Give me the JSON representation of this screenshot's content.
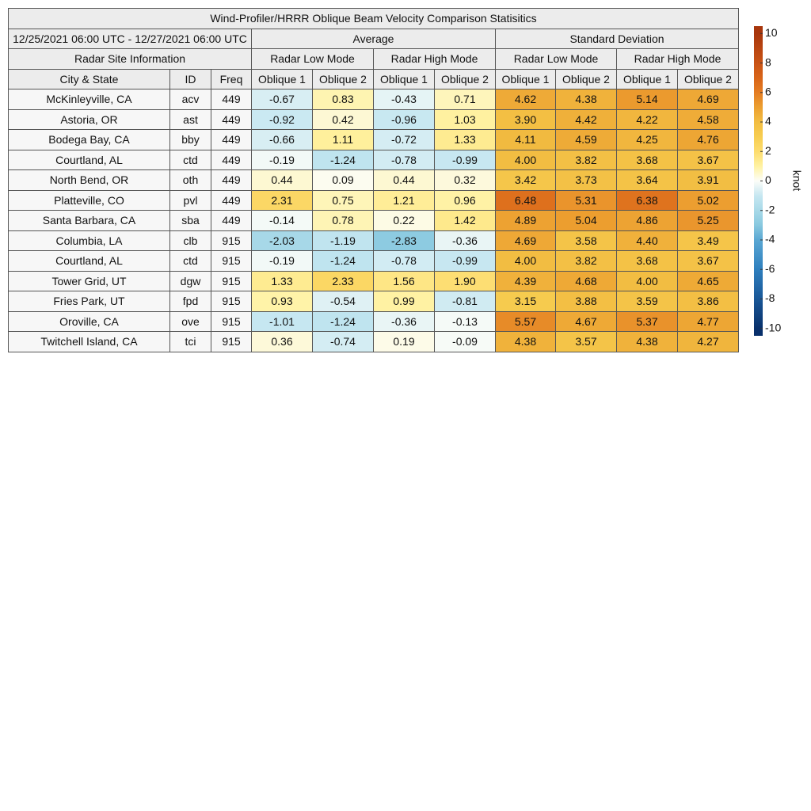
{
  "title": "Wind-Profiler/HRRR Oblique Beam Velocity Comparison Statisitics",
  "date_range": "12/25/2021 06:00 UTC - 12/27/2021 06:00 UTC",
  "groups": [
    "Average",
    "Standard Deviation"
  ],
  "site_header": "Radar Site Information",
  "modes": [
    "Radar Low Mode",
    "Radar High Mode",
    "Radar Low Mode",
    "Radar High Mode"
  ],
  "columns": [
    "City & State",
    "ID",
    "Freq",
    "Oblique 1",
    "Oblique 2",
    "Oblique 1",
    "Oblique 2",
    "Oblique 1",
    "Oblique 2",
    "Oblique 1",
    "Oblique 2"
  ],
  "rows": [
    [
      "McKinleyville, CA",
      "acv",
      "449",
      "-0.67",
      "0.83",
      "-0.43",
      "0.71",
      "4.62",
      "4.38",
      "5.14",
      "4.69"
    ],
    [
      "Astoria, OR",
      "ast",
      "449",
      "-0.92",
      "0.42",
      "-0.96",
      "1.03",
      "3.90",
      "4.42",
      "4.22",
      "4.58"
    ],
    [
      "Bodega Bay, CA",
      "bby",
      "449",
      "-0.66",
      "1.11",
      "-0.72",
      "1.33",
      "4.11",
      "4.59",
      "4.25",
      "4.76"
    ],
    [
      "Courtland, AL",
      "ctd",
      "449",
      "-0.19",
      "-1.24",
      "-0.78",
      "-0.99",
      "4.00",
      "3.82",
      "3.68",
      "3.67"
    ],
    [
      "North Bend, OR",
      "oth",
      "449",
      "0.44",
      "0.09",
      "0.44",
      "0.32",
      "3.42",
      "3.73",
      "3.64",
      "3.91"
    ],
    [
      "Platteville, CO",
      "pvl",
      "449",
      "2.31",
      "0.75",
      "1.21",
      "0.96",
      "6.48",
      "5.31",
      "6.38",
      "5.02"
    ],
    [
      "Santa Barbara, CA",
      "sba",
      "449",
      "-0.14",
      "0.78",
      "0.22",
      "1.42",
      "4.89",
      "5.04",
      "4.86",
      "5.25"
    ],
    [
      "Columbia, LA",
      "clb",
      "915",
      "-2.03",
      "-1.19",
      "-2.83",
      "-0.36",
      "4.69",
      "3.58",
      "4.40",
      "3.49"
    ],
    [
      "Courtland, AL",
      "ctd",
      "915",
      "-0.19",
      "-1.24",
      "-0.78",
      "-0.99",
      "4.00",
      "3.82",
      "3.68",
      "3.67"
    ],
    [
      "Tower Grid, UT",
      "dgw",
      "915",
      "1.33",
      "2.33",
      "1.56",
      "1.90",
      "4.39",
      "4.68",
      "4.00",
      "4.65"
    ],
    [
      "Fries Park, UT",
      "fpd",
      "915",
      "0.93",
      "-0.54",
      "0.99",
      "-0.81",
      "3.15",
      "3.88",
      "3.59",
      "3.86"
    ],
    [
      "Oroville, CA",
      "ove",
      "915",
      "-1.01",
      "-1.24",
      "-0.36",
      "-0.13",
      "5.57",
      "4.67",
      "5.37",
      "4.77"
    ],
    [
      "Twitchell Island, CA",
      "tci",
      "915",
      "0.36",
      "-0.74",
      "0.19",
      "-0.09",
      "4.38",
      "3.57",
      "4.38",
      "4.27"
    ]
  ],
  "colorbar": {
    "label": "knot",
    "lim": [
      -10.5,
      10.5
    ],
    "ticks": [
      10,
      8,
      6,
      4,
      2,
      0,
      -2,
      -4,
      -6,
      -8,
      -10
    ]
  }
}
